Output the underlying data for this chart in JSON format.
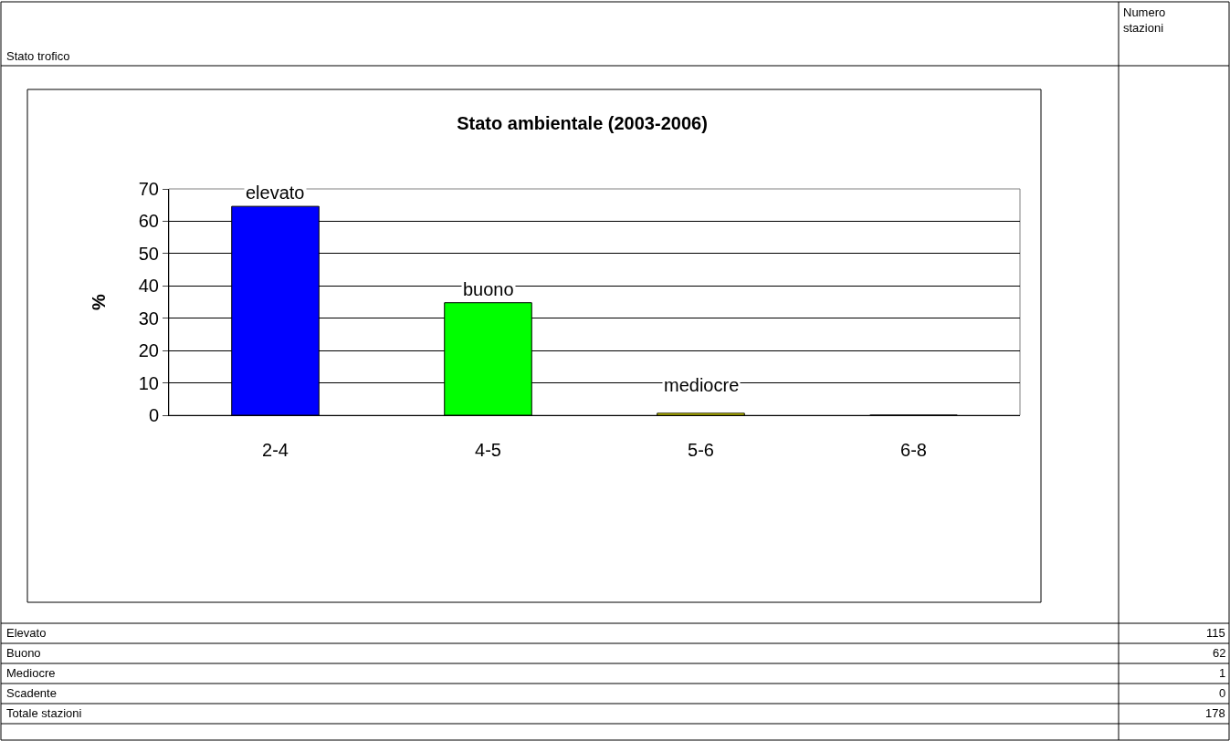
{
  "chart_data": {
    "type": "bar",
    "title": "Stato ambientale (2003-2006)",
    "ylabel": "%",
    "categories": [
      "2-4",
      "4-5",
      "5-6",
      "6-8"
    ],
    "values": [
      64.6,
      34.8,
      0.6,
      0
    ],
    "colors": [
      "#0000ff",
      "#00ff00",
      "#ffff00",
      "#ff0000"
    ],
    "ylim": [
      0,
      70
    ],
    "yticks": [
      0,
      10,
      20,
      30,
      40,
      50,
      60,
      70
    ],
    "grid": "y",
    "annotations": [
      "Stato trofico",
      "Numero stazioni",
      "Elevato",
      "115",
      "Buono",
      "62",
      "Mediocre",
      "1",
      "Scadente",
      "0",
      "Totale stazioni",
      "178",
      "elevato",
      "buono",
      "mediocre"
    ]
  }
}
